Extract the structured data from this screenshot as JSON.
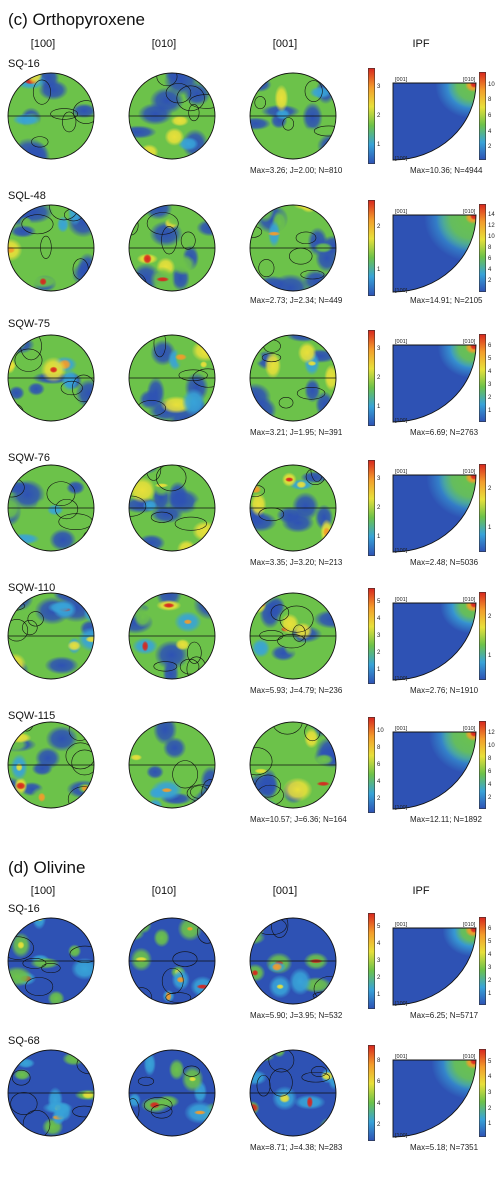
{
  "colors": {
    "low": "#2e52b4",
    "mid_low": "#38a3d8",
    "mid": "#6cc24a",
    "mid_high": "#e8e03a",
    "high": "#f39c2b",
    "max": "#d7261e",
    "colorbar_stops": [
      "#2e52b4",
      "#38a3d8",
      "#6cc24a",
      "#e8e03a",
      "#f39c2b",
      "#d7261e"
    ]
  },
  "sections": [
    {
      "title": "(c) Orthopyroxene",
      "column_headers": [
        "[100]",
        "[010]",
        "[001]",
        "IPF"
      ],
      "ipf_axes": [
        "[001]",
        "[010]",
        "[100]"
      ],
      "samples": [
        {
          "name": "SQ-16",
          "cbar_ticks": [
            "3",
            "2",
            "1"
          ],
          "ipf_ticks": [
            "10",
            "8",
            "6",
            "4",
            "2"
          ],
          "stats": "Max=3.26; J=2.00; N=810",
          "ipf_stats": "Max=10.36; N=4944"
        },
        {
          "name": "SQL-48",
          "cbar_ticks": [
            "2",
            "1"
          ],
          "ipf_ticks": [
            "14",
            "12",
            "10",
            "8",
            "6",
            "4",
            "2"
          ],
          "stats": "Max=2.73; J=2.34; N=449",
          "ipf_stats": "Max=14.91; N=2105"
        },
        {
          "name": "SQW-75",
          "cbar_ticks": [
            "3",
            "2",
            "1"
          ],
          "ipf_ticks": [
            "6",
            "5",
            "4",
            "3",
            "2",
            "1"
          ],
          "stats": "Max=3.21; J=1.95; N=391",
          "ipf_stats": "Max=6.69; N=2763"
        },
        {
          "name": "SQW-76",
          "cbar_ticks": [
            "3",
            "2",
            "1"
          ],
          "ipf_ticks": [
            "2",
            "1"
          ],
          "stats": "Max=3.35; J=3.20; N=213",
          "ipf_stats": "Max=2.48; N=5036"
        },
        {
          "name": "SQW-110",
          "cbar_ticks": [
            "5",
            "4",
            "3",
            "2",
            "1"
          ],
          "ipf_ticks": [
            "2",
            "1"
          ],
          "stats": "Max=5.93; J=4.79; N=236",
          "ipf_stats": "Max=2.76; N=1910"
        },
        {
          "name": "SQW-115",
          "cbar_ticks": [
            "10",
            "8",
            "6",
            "4",
            "2"
          ],
          "ipf_ticks": [
            "12",
            "10",
            "8",
            "6",
            "4",
            "2"
          ],
          "stats": "Max=10.57; J=6.36; N=164",
          "ipf_stats": "Max=12.11; N=1892"
        }
      ]
    },
    {
      "title": "(d) Olivine",
      "column_headers": [
        "[100]",
        "[010]",
        "[001]",
        "IPF"
      ],
      "ipf_axes": [
        "[001]",
        "[010]",
        "[100]"
      ],
      "samples": [
        {
          "name": "SQ-16",
          "cbar_ticks": [
            "5",
            "4",
            "3",
            "2",
            "1"
          ],
          "ipf_ticks": [
            "6",
            "5",
            "4",
            "3",
            "2",
            "1"
          ],
          "stats": "Max=5.90; J=3.95; N=532",
          "ipf_stats": "Max=6.25; N=5717"
        },
        {
          "name": "SQ-68",
          "cbar_ticks": [
            "8",
            "6",
            "4",
            "2"
          ],
          "ipf_ticks": [
            "5",
            "4",
            "3",
            "2",
            "1"
          ],
          "stats": "Max=8.71; J=4.38; N=283",
          "ipf_stats": "Max=5.18; N=7351"
        }
      ]
    }
  ]
}
